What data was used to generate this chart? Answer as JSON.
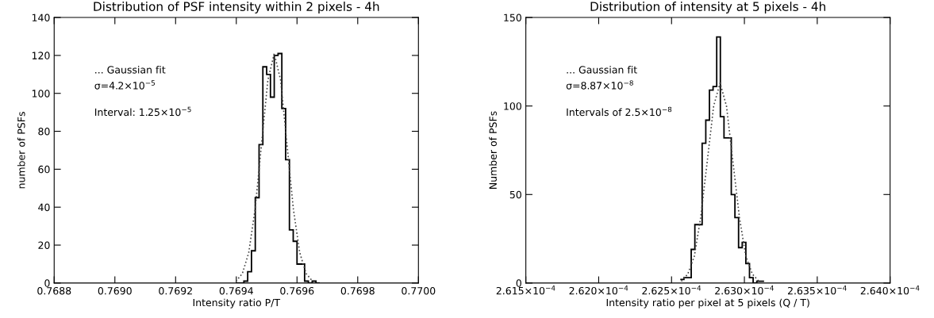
{
  "chart_data": [
    {
      "type": "histogram",
      "title": "Distribution of PSF intensity within 2 pixels - 4h",
      "xlabel": "Intensity ratio P/T",
      "ylabel": "number of PSFs",
      "color": "#000000",
      "bins": [
        0.7694,
        0.7694125,
        0.769425,
        0.7694375,
        0.76945,
        0.7694625,
        0.769475,
        0.7694875,
        0.7695,
        0.7695125,
        0.769525,
        0.7695375,
        0.76955,
        0.7695625,
        0.769575,
        0.7695875,
        0.7696,
        0.7696125,
        0.769625,
        0.7696375,
        0.76965,
        0.7696625,
        0.769675
      ],
      "values": [
        0,
        0,
        1,
        6,
        17,
        45,
        73,
        114,
        110,
        98,
        120,
        121,
        92,
        65,
        28,
        22,
        10,
        10,
        1,
        0,
        1,
        0
      ],
      "series": [
        {
          "type": "line",
          "color": "#444444",
          "line_style": "dotted",
          "x": [
            0.769399,
            0.76942,
            0.769441,
            0.769462,
            0.769483,
            0.769504,
            0.769525,
            0.769546,
            0.769567,
            0.769588,
            0.769609,
            0.76963,
            0.769651
          ],
          "values": [
            1,
            5,
            16,
            39,
            73,
            107,
            121,
            107,
            73,
            39,
            16,
            5,
            1
          ]
        }
      ],
      "xlim": [
        0.7688,
        0.77
      ],
      "ylim": [
        0,
        140
      ],
      "xticks": [
        0.7688,
        {
          "value": 0.769,
          "label": "0.7690"
        },
        0.7692,
        0.7694,
        0.7696,
        0.7698,
        {
          "value": 0.77,
          "label": "0.7700"
        }
      ],
      "yticks": [
        0,
        20,
        40,
        60,
        80,
        100,
        120,
        140
      ],
      "annotations": [
        "... Gaussian fit",
        "σ=4.2×10$^{−5}$",
        "Interval: 1.25×10$^{−5}$"
      ]
    },
    {
      "type": "histogram",
      "title": "Distribution of intensity at 5 pixels - 4h",
      "xlabel": "Intensity ratio per pixel at 5 pixels (Q / T)",
      "ylabel": "Number of PSFs",
      "color": "#000000",
      "bins": [
        0.00026256,
        0.000262585,
        0.00026261,
        0.000262635,
        0.00026266,
        0.000262685,
        0.00026271,
        0.000262735,
        0.00026276,
        0.000262785,
        0.00026281,
        0.000262835,
        0.00026286,
        0.000262885,
        0.00026291,
        0.000262935,
        0.00026296,
        0.000262985,
        0.00026301,
        0.000263035,
        0.00026306,
        0.000263085,
        0.00026311,
        0.000263135
      ],
      "values": [
        2,
        3,
        3,
        19,
        33,
        33,
        79,
        92,
        109,
        111,
        139,
        94,
        82,
        82,
        50,
        37,
        20,
        23,
        11,
        3,
        0,
        1,
        1
      ],
      "series": [
        {
          "type": "line",
          "color": "#444444",
          "line_style": "dotted",
          "x": [
            0.000262567,
            0.000262611,
            0.000262656,
            0.0002627,
            0.000262744,
            0.000262789,
            0.000262833,
            0.000262877,
            0.000262922,
            0.000262966,
            0.00026301,
            0.000263055,
            0.000263099
          ],
          "values": [
            1,
            5,
            15,
            37,
            68,
            100,
            113,
            100,
            68,
            37,
            15,
            5,
            1
          ]
        }
      ],
      "xlim": [
        0.0002615,
        0.000264
      ],
      "ylim": [
        0,
        150
      ],
      "xticks": [
        {
          "value": 0.0002615,
          "label": "2.615×10$^{−4}$"
        },
        {
          "value": 0.000262,
          "label": "2.620×10$^{−4}$"
        },
        {
          "value": 0.0002625,
          "label": "2.625×10$^{−4}$"
        },
        {
          "value": 0.000263,
          "label": "2.630×10$^{−4}$"
        },
        {
          "value": 0.0002635,
          "label": "2.635×10$^{−4}$"
        },
        {
          "value": 0.000264,
          "label": "2.640×10$^{−4}$"
        }
      ],
      "yticks": [
        0,
        50,
        100,
        150
      ],
      "annotations": [
        "... Gaussian fit",
        "σ=8.87×10$^{−8}$",
        "Intervals of 2.5×10$^{−8}$"
      ]
    }
  ]
}
